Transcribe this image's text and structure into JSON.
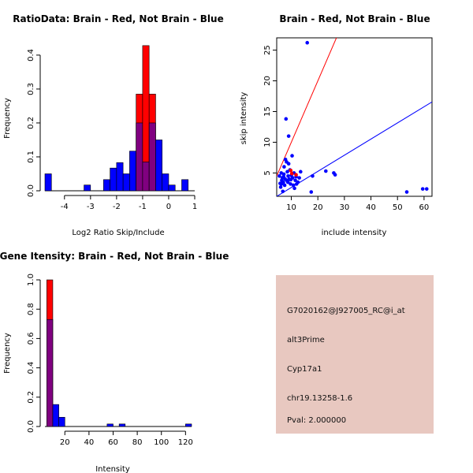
{
  "colors": {
    "red": "#ff0000",
    "blue": "#0000ff",
    "overlap": "#800080",
    "info_bg": "#e8c8c0",
    "pval": "#cc0000"
  },
  "info_panel": {
    "probe": "G7020162@J927005_RC@i_at",
    "event": "alt3Prime",
    "gene": "Cyp17a1",
    "location": "chr19.13258-1.6",
    "pval": "Pval: 2.000000"
  },
  "chart_data": [
    {
      "type": "bar",
      "panel": "ratio",
      "title": "RatioData: Brain - Red, Not Brain - Blue",
      "xlabel": "Log2 Ratio Skip/Include",
      "ylabel": "Frequency",
      "xlim": [
        -4.75,
        1.0
      ],
      "ylim": [
        0,
        0.43
      ],
      "xticks": [
        -4,
        -3,
        -2,
        -1,
        0,
        1
      ],
      "xtick_labels": [
        "-4",
        "-3",
        "-2",
        "-1",
        "0",
        "1"
      ],
      "yticks": [
        0.0,
        0.1,
        0.2,
        0.3,
        0.4
      ],
      "ytick_labels": [
        "0.0",
        "0.1",
        "0.2",
        "0.3",
        "0.4"
      ],
      "bin_width": 0.25,
      "bin_starts": [
        -4.75,
        -3.25,
        -2.5,
        -2.25,
        -2.0,
        -1.75,
        -1.5,
        -1.25,
        -1.0,
        -0.75,
        -0.5,
        -0.25,
        0.0,
        0.5
      ],
      "blue_values": [
        0.05,
        0.017,
        0.033,
        0.067,
        0.083,
        0.05,
        0.117,
        0.2,
        0.085,
        0.2,
        0.15,
        0.05,
        0.017,
        0.033
      ],
      "red_values": [
        0,
        0,
        0,
        0,
        0,
        0,
        0,
        0.285,
        0.428,
        0.285,
        0,
        0,
        0,
        0
      ]
    },
    {
      "type": "scatter",
      "panel": "scatter",
      "title": "Brain - Red, Not Brain - Blue",
      "xlabel": "include intensity",
      "ylabel": "skip intensity",
      "xlim": [
        4.5,
        63
      ],
      "ylim": [
        1.2,
        27
      ],
      "xticks": [
        10,
        20,
        30,
        40,
        50,
        60
      ],
      "xtick_labels": [
        "10",
        "20",
        "30",
        "40",
        "50",
        "60"
      ],
      "yticks": [
        5,
        10,
        15,
        20,
        25
      ],
      "ytick_labels": [
        "5",
        "10",
        "15",
        "20",
        "25"
      ],
      "blue_points": [
        [
          5.5,
          4.5
        ],
        [
          5.8,
          3.3
        ],
        [
          6.0,
          2.7
        ],
        [
          6.2,
          5.0
        ],
        [
          6.4,
          3.8
        ],
        [
          6.6,
          4.2
        ],
        [
          6.8,
          2.0
        ],
        [
          7.0,
          3.5
        ],
        [
          7.2,
          4.8
        ],
        [
          7.3,
          6.0
        ],
        [
          7.5,
          3.0
        ],
        [
          7.7,
          4.0
        ],
        [
          7.8,
          7.2
        ],
        [
          8.0,
          13.8
        ],
        [
          8.2,
          6.8
        ],
        [
          8.3,
          3.8
        ],
        [
          8.5,
          5.2
        ],
        [
          8.7,
          3.5
        ],
        [
          8.8,
          4.5
        ],
        [
          9.0,
          6.5
        ],
        [
          9.0,
          11.0
        ],
        [
          9.2,
          4.0
        ],
        [
          9.5,
          5.5
        ],
        [
          9.7,
          3.2
        ],
        [
          10.0,
          4.6
        ],
        [
          10.3,
          7.8
        ],
        [
          10.5,
          4.2
        ],
        [
          10.8,
          3.0
        ],
        [
          11.0,
          5.0
        ],
        [
          11.2,
          2.5
        ],
        [
          11.5,
          3.8
        ],
        [
          11.8,
          4.4
        ],
        [
          12.0,
          3.2
        ],
        [
          12.5,
          3.5
        ],
        [
          13.0,
          4.2
        ],
        [
          13.5,
          5.2
        ],
        [
          16.0,
          26.2
        ],
        [
          17.5,
          1.9
        ],
        [
          18.0,
          4.5
        ],
        [
          23.0,
          5.3
        ],
        [
          26.0,
          5.0
        ],
        [
          26.5,
          4.7
        ],
        [
          53.5,
          1.9
        ],
        [
          59.5,
          2.4
        ],
        [
          61.0,
          2.4
        ],
        [
          6.3,
          3.2
        ],
        [
          7.1,
          4.4
        ],
        [
          9.8,
          3.9
        ]
      ],
      "red_points": [
        [
          9.8,
          5.4
        ],
        [
          10.2,
          4.9
        ],
        [
          11.8,
          4.7
        ]
      ],
      "lines": [
        {
          "name": "identity",
          "color": "#ff0000",
          "slope": 1.0,
          "intercept": 0.0
        },
        {
          "name": "fit",
          "color": "#0000ff",
          "slope": 0.263,
          "intercept": 0.0
        }
      ]
    },
    {
      "type": "bar",
      "panel": "intensity",
      "title": "Gene Itensity: Brain - Red, Not Brain - Blue",
      "xlabel": "Intensity",
      "ylabel": "Frequency",
      "xlim": [
        3.5,
        125
      ],
      "ylim": [
        0,
        1.0
      ],
      "xticks": [
        20,
        40,
        60,
        80,
        100,
        120
      ],
      "xtick_labels": [
        "20",
        "40",
        "60",
        "80",
        "100",
        "120"
      ],
      "yticks": [
        0.0,
        0.2,
        0.4,
        0.6,
        0.8,
        1.0
      ],
      "ytick_labels": [
        "0.0",
        "0.2",
        "0.4",
        "0.6",
        "0.8",
        "1.0"
      ],
      "bin_width": 5,
      "bin_starts": [
        5,
        10,
        15,
        55,
        65,
        120
      ],
      "blue_values": [
        0.73,
        0.15,
        0.063,
        0.017,
        0.017,
        0.017
      ],
      "red_values": [
        1.0,
        0,
        0,
        0,
        0,
        0
      ]
    }
  ]
}
